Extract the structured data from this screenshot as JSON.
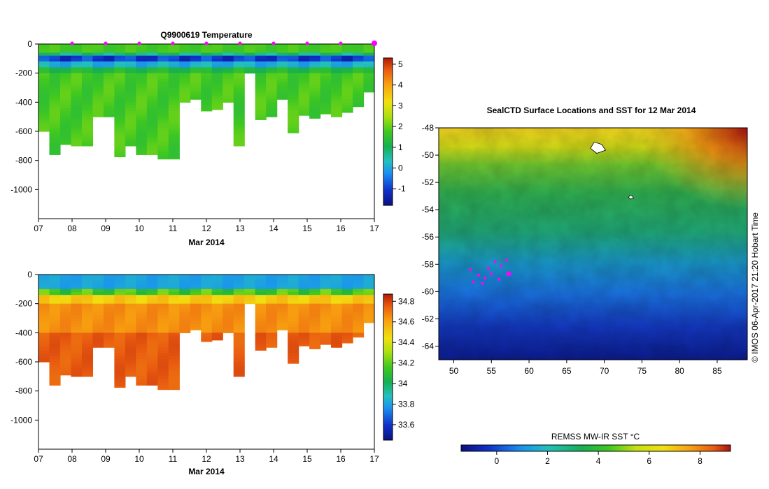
{
  "colors": {
    "background": "#ffffff",
    "axis": "#000000",
    "marker": "#ff00ff"
  },
  "chart_data": [
    {
      "type": "heatmap",
      "title": "Q9900619  Temperature",
      "xlabel": "Mar 2014",
      "ylabel": "",
      "xlim": [
        7,
        17
      ],
      "ylim": [
        -1200,
        0
      ],
      "x_ticks": [
        "07",
        "08",
        "09",
        "10",
        "11",
        "12",
        "13",
        "14",
        "15",
        "16",
        "17"
      ],
      "y_ticks": [
        0,
        -200,
        -400,
        -600,
        -800,
        -1000
      ],
      "y_tick_labels": [
        "0",
        "-200",
        "-400",
        "-600",
        "-800",
        "-1000"
      ],
      "colorbar": {
        "min": -1.8,
        "max": 5.3,
        "ticks": [
          -1,
          0,
          1,
          2,
          3,
          4,
          5
        ],
        "tick_labels": [
          "-1",
          "0",
          "1",
          "2",
          "3",
          "4",
          "5"
        ]
      },
      "profile_bottom_depths": [
        600,
        760,
        690,
        700,
        700,
        500,
        500,
        775,
        700,
        760,
        760,
        790,
        790,
        400,
        380,
        460,
        450,
        400,
        700,
        200,
        520,
        500,
        380,
        610,
        490,
        510,
        480,
        500,
        470,
        430,
        330
      ],
      "surface_markers": [
        8.0,
        9.0,
        10.0,
        11.0,
        12.0,
        13.0,
        14.0,
        15.0,
        16.0,
        17.0
      ]
    },
    {
      "type": "heatmap",
      "title": "",
      "xlabel": "Mar 2014",
      "ylabel": "",
      "xlim": [
        7,
        17
      ],
      "ylim": [
        -1200,
        0
      ],
      "x_ticks": [
        "07",
        "08",
        "09",
        "10",
        "11",
        "12",
        "13",
        "14",
        "15",
        "16",
        "17"
      ],
      "y_ticks": [
        0,
        -200,
        -400,
        -600,
        -800,
        -1000
      ],
      "y_tick_labels": [
        "0",
        "-200",
        "-400",
        "-600",
        "-800",
        "-1000"
      ],
      "colorbar": {
        "min": 33.45,
        "max": 34.87,
        "ticks": [
          33.6,
          33.8,
          34,
          34.2,
          34.4,
          34.6,
          34.8
        ],
        "tick_labels": [
          "33.6",
          "33.8",
          "34",
          "34.2",
          "34.4",
          "34.6",
          "34.8"
        ]
      },
      "profile_bottom_depths": [
        600,
        760,
        690,
        700,
        700,
        500,
        500,
        775,
        700,
        760,
        760,
        790,
        790,
        400,
        380,
        460,
        450,
        400,
        700,
        200,
        520,
        500,
        380,
        610,
        490,
        510,
        480,
        500,
        470,
        430,
        330
      ]
    },
    {
      "type": "heatmap",
      "title": "SealCTD Surface Locations and SST for 12 Mar 2014",
      "xlabel": "",
      "ylabel": "",
      "xlim": [
        48,
        89
      ],
      "ylim": [
        -65,
        -48
      ],
      "x_ticks": [
        "50",
        "55",
        "60",
        "65",
        "70",
        "75",
        "80",
        "85"
      ],
      "x_tick_values": [
        50,
        55,
        60,
        65,
        70,
        75,
        80,
        85
      ],
      "y_ticks": [
        "-48",
        "-50",
        "-52",
        "-54",
        "-56",
        "-58",
        "-60",
        "-62",
        "-64"
      ],
      "y_tick_values": [
        -48,
        -50,
        -52,
        -54,
        -56,
        -58,
        -60,
        -62,
        -64
      ],
      "colorbar": {
        "title": "REMSS MW-IR SST °C",
        "min": -1.4,
        "max": 9.2,
        "ticks": [
          0,
          2,
          4,
          6,
          8
        ],
        "tick_labels": [
          "0",
          "2",
          "4",
          "6",
          "8"
        ]
      },
      "surface_locations": [
        {
          "lon": 52.2,
          "lat": -58.4
        },
        {
          "lon": 53.3,
          "lat": -58.8
        },
        {
          "lon": 54.2,
          "lat": -59.0
        },
        {
          "lon": 55.0,
          "lat": -58.7
        },
        {
          "lon": 56.0,
          "lat": -59.1
        },
        {
          "lon": 57.3,
          "lat": -58.7
        },
        {
          "lon": 56.3,
          "lat": -58.1
        },
        {
          "lon": 57.0,
          "lat": -57.7
        },
        {
          "lon": 55.5,
          "lat": -57.8
        },
        {
          "lon": 54.6,
          "lat": -58.3
        },
        {
          "lon": 52.6,
          "lat": -59.3
        },
        {
          "lon": 53.8,
          "lat": -59.4
        }
      ],
      "current_location": {
        "lon": 57.3,
        "lat": -58.7
      },
      "islands": [
        {
          "name": "Heard Island",
          "lon": 69,
          "lat": -49.5
        },
        {
          "name": "McDonald Islands",
          "lon": 73.5,
          "lat": -53.1
        }
      ]
    }
  ],
  "credit": "© IMOS 06-Apr-2017 21:20 Hobart Time"
}
